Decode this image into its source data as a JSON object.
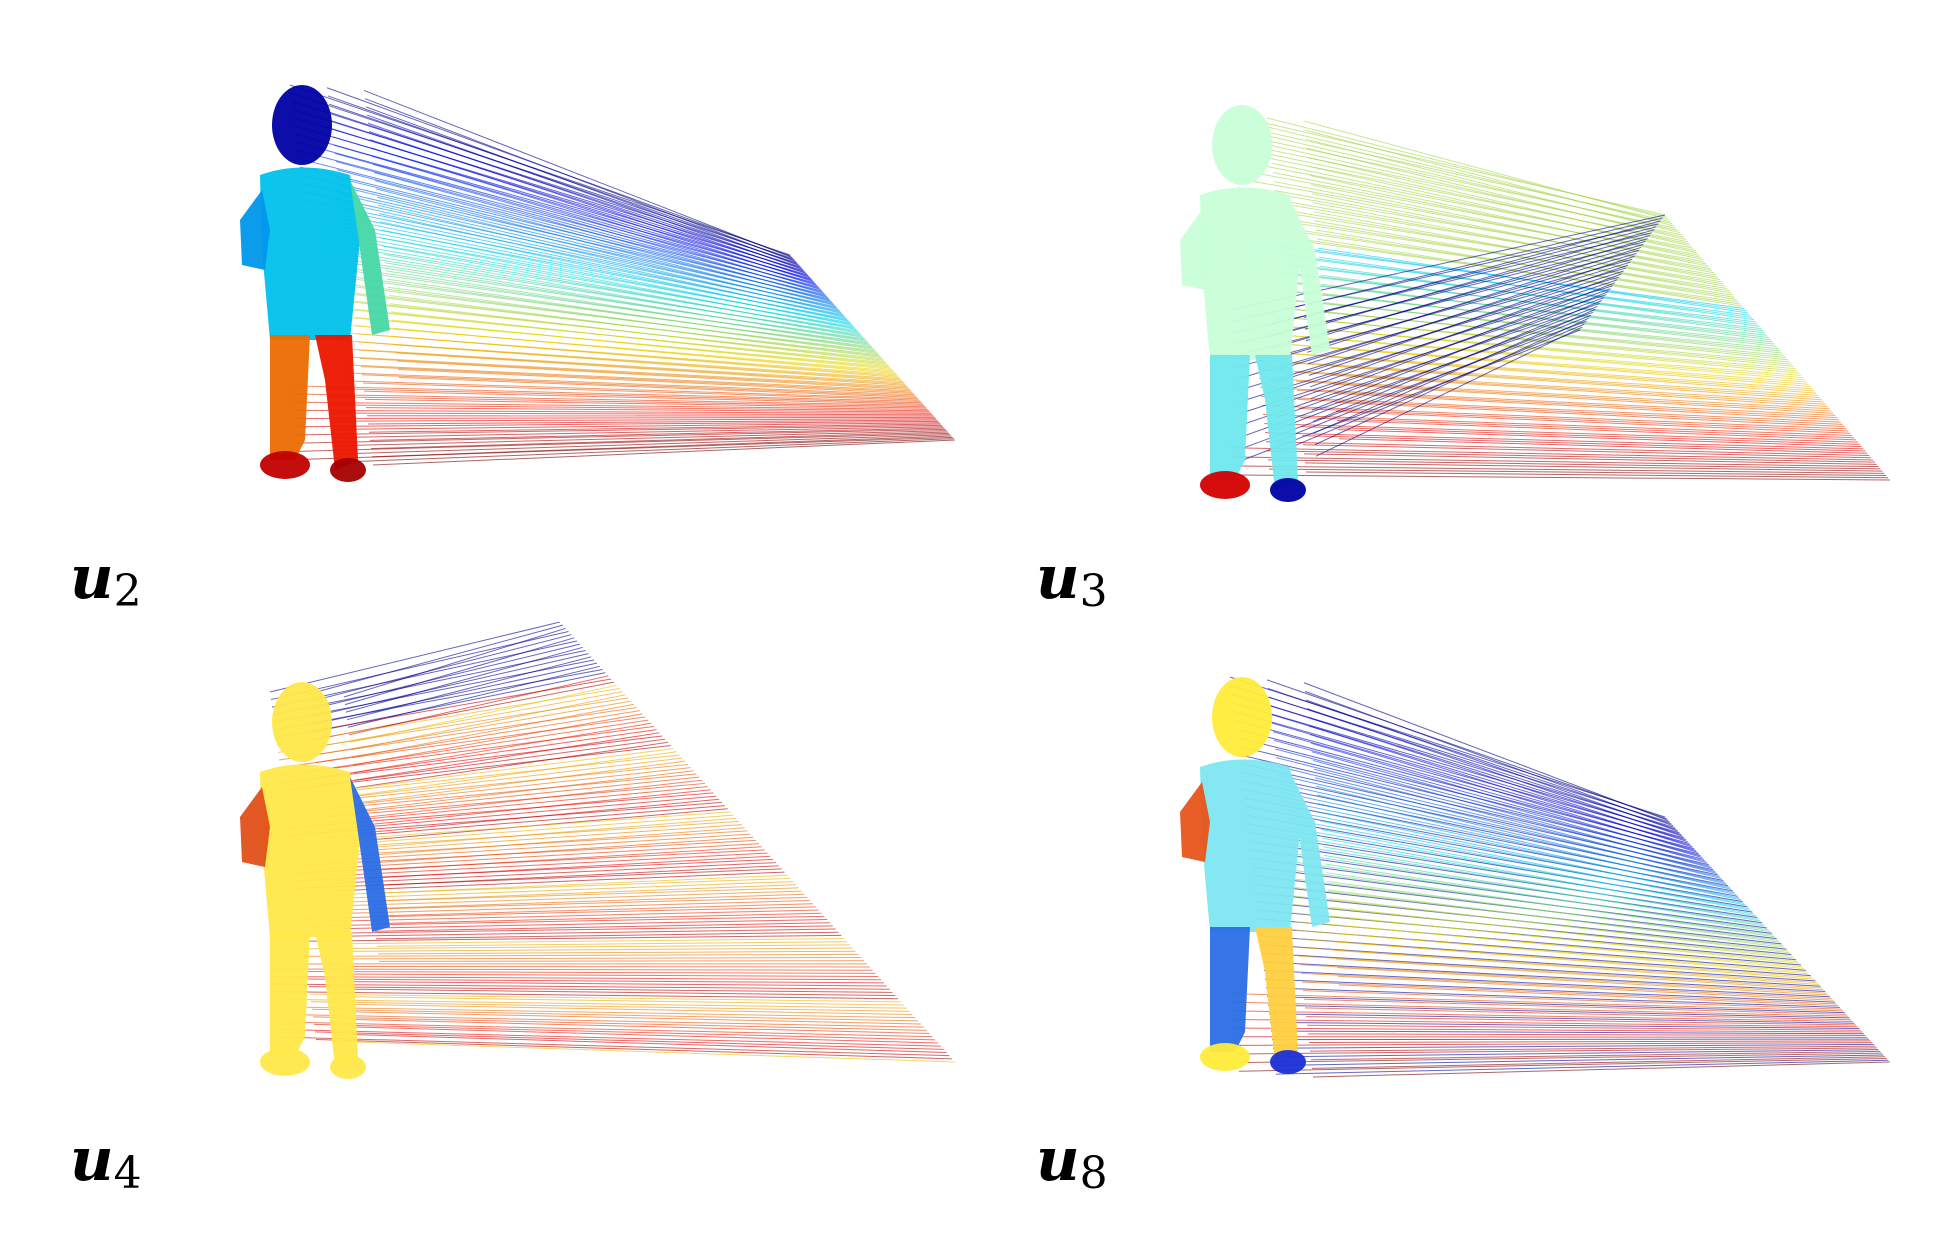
{
  "figure": {
    "panels": [
      {
        "id": "u2",
        "label": "u",
        "subscript": "2",
        "body_color": "#2a6ee6"
      },
      {
        "id": "u3",
        "label": "u",
        "subscript": "3",
        "body_color": "#c8ffd8"
      },
      {
        "id": "u4",
        "label": "u",
        "subscript": "4",
        "body_color": "#ffe84a"
      },
      {
        "id": "u8",
        "label": "u",
        "subscript": "8",
        "body_color": "#7ee6f0"
      }
    ]
  },
  "colors": {
    "jet_low": "#1a2fd6",
    "jet_mid": "#7fd07f",
    "jet_high": "#c9160f"
  }
}
